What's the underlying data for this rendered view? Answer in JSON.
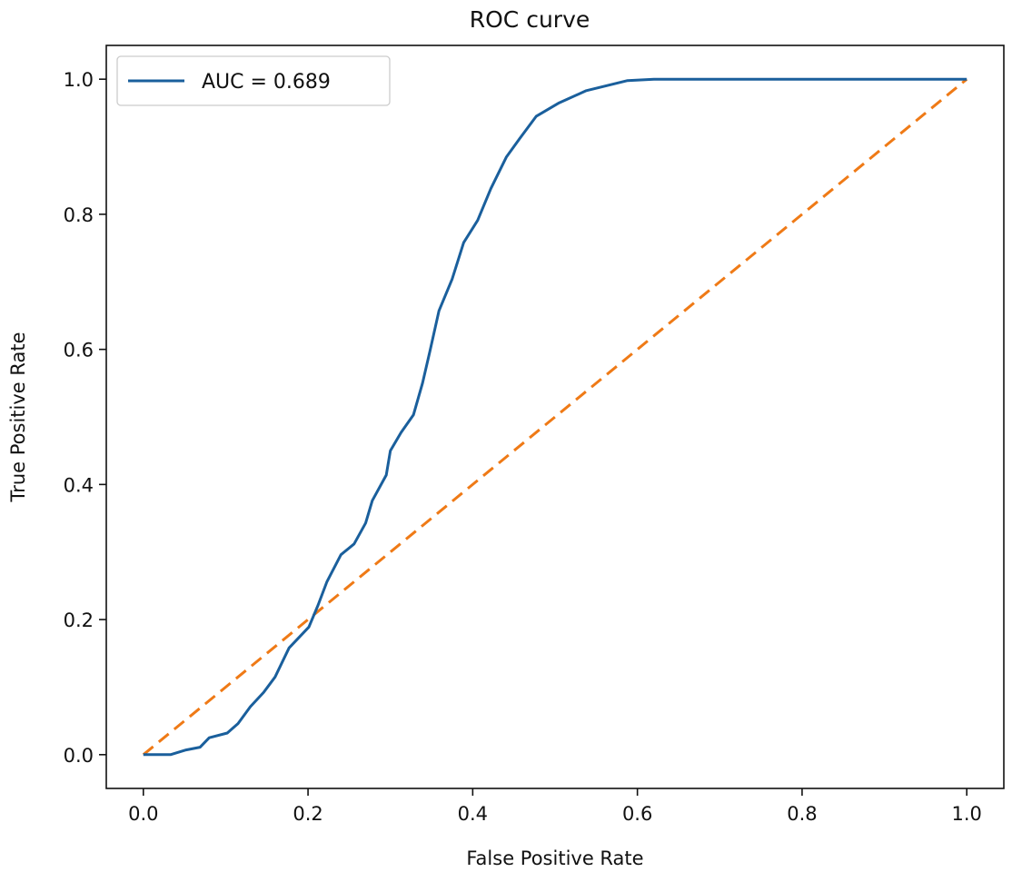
{
  "chart_data": {
    "type": "line",
    "title": "ROC curve",
    "xlabel": "False Positive Rate",
    "ylabel": "True Positive Rate",
    "xlim": [
      -0.045,
      1.045
    ],
    "ylim": [
      -0.05,
      1.05
    ],
    "xticks": [
      "0.0",
      "0.2",
      "0.4",
      "0.6",
      "0.8",
      "1.0"
    ],
    "yticks": [
      "0.0",
      "0.2",
      "0.4",
      "0.6",
      "0.8",
      "1.0"
    ],
    "grid": false,
    "legend_position": "top-left",
    "series": [
      {
        "name": "AUC = 0.689",
        "color": "#1a5f9c",
        "style": "solid",
        "x": [
          0,
          0.033,
          0.052,
          0.069,
          0.08,
          0.102,
          0.115,
          0.13,
          0.146,
          0.16,
          0.177,
          0.201,
          0.212,
          0.223,
          0.24,
          0.256,
          0.27,
          0.278,
          0.295,
          0.3,
          0.313,
          0.328,
          0.339,
          0.348,
          0.359,
          0.375,
          0.389,
          0.406,
          0.422,
          0.441,
          0.457,
          0.477,
          0.505,
          0.538,
          0.588,
          0.62,
          1.0
        ],
        "y": [
          0,
          0,
          0.007,
          0.011,
          0.025,
          0.032,
          0.046,
          0.071,
          0.092,
          0.115,
          0.158,
          0.189,
          0.221,
          0.256,
          0.296,
          0.312,
          0.343,
          0.376,
          0.414,
          0.45,
          0.477,
          0.503,
          0.55,
          0.597,
          0.657,
          0.704,
          0.758,
          0.791,
          0.838,
          0.885,
          0.912,
          0.945,
          0.965,
          0.983,
          0.998,
          1.0,
          1.0
        ]
      },
      {
        "color": "#ef7a16",
        "style": "dashed",
        "x": [
          0,
          1
        ],
        "y": [
          0,
          1
        ]
      }
    ]
  }
}
